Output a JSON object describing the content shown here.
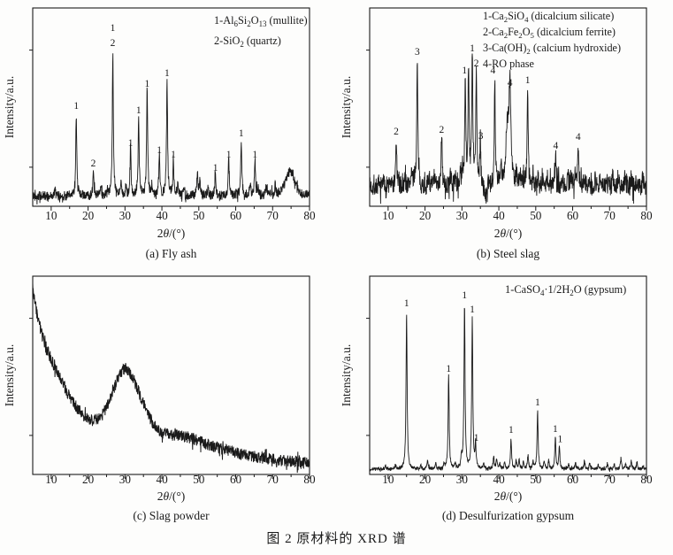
{
  "figure_caption": "图 2  原材料的 XRD 谱",
  "line_color": "#1a1a1a",
  "chart_data": [
    {
      "id": "a",
      "type": "line",
      "variant": "xrd-pattern",
      "panel_label": "(a) Fly ash",
      "xlabel": "2*θ*/(°)",
      "ylabel": "Intensity/a.u.",
      "xlim": [
        5,
        80
      ],
      "xticks": [
        10,
        20,
        30,
        40,
        50,
        60,
        70,
        80
      ],
      "minor_xticks": [
        15,
        25,
        35,
        45,
        55,
        65,
        75
      ],
      "y_units": "arbitrary (no tick labels)",
      "legend": [
        "1-Al_6_Si_2_O_13_ (mullite)",
        "2-SiO_2_ (quartz)"
      ],
      "noise": {
        "base": 0.055,
        "amp": 0.026,
        "seed": 42
      },
      "peaks": [
        [
          16.8,
          0.445
        ],
        [
          21.4,
          0.12
        ],
        [
          26.7,
          0.77
        ],
        [
          31.5,
          0.255
        ],
        [
          33.7,
          0.43
        ],
        [
          36.0,
          0.575
        ],
        [
          39.3,
          0.216
        ],
        [
          41.4,
          0.63
        ],
        [
          43.1,
          0.193
        ],
        [
          54.5,
          0.12
        ],
        [
          58.1,
          0.193
        ],
        [
          61.5,
          0.307
        ],
        [
          65.2,
          0.193
        ]
      ],
      "minor_peaks": [
        [
          11.0,
          0.03
        ],
        [
          23.5,
          0.04
        ],
        [
          28.9,
          0.09
        ],
        [
          30.2,
          0.05
        ],
        [
          37.3,
          0.05
        ],
        [
          44.3,
          0.06
        ],
        [
          46.0,
          0.05
        ],
        [
          49.6,
          0.12
        ],
        [
          50.3,
          0.09
        ],
        [
          52.5,
          0.05
        ],
        [
          63.9,
          0.06
        ],
        [
          66.0,
          0.04
        ],
        [
          68.2,
          0.05
        ],
        [
          70.7,
          0.05
        ],
        [
          74.3,
          0.1,
          1.2
        ],
        [
          75.4,
          0.07,
          0.8
        ]
      ],
      "peak_labels": [
        [
          16.8,
          "1",
          0.524
        ],
        [
          21.4,
          "2",
          0.214
        ],
        [
          26.7,
          "1",
          0.943
        ],
        [
          26.7,
          "2",
          0.862
        ],
        [
          31.5,
          "1",
          0.324
        ],
        [
          33.7,
          "1",
          0.5
        ],
        [
          36.0,
          "1",
          0.643
        ],
        [
          39.3,
          "1",
          0.286
        ],
        [
          41.4,
          "1",
          0.7
        ],
        [
          43.1,
          "1",
          0.262
        ],
        [
          54.5,
          "1",
          0.19
        ],
        [
          58.1,
          "1",
          0.262
        ],
        [
          61.5,
          "1",
          0.376
        ],
        [
          65.2,
          "1",
          0.262
        ]
      ]
    },
    {
      "id": "b",
      "type": "line",
      "variant": "xrd-pattern",
      "panel_label": "(b) Steel slag",
      "xlabel": "2*θ*/(°)",
      "ylabel": "Intensity/a.u.",
      "xlim": [
        5,
        80
      ],
      "xticks": [
        10,
        20,
        30,
        40,
        50,
        60,
        70,
        80
      ],
      "minor_xticks": [
        15,
        25,
        35,
        45,
        55,
        65,
        75
      ],
      "y_units": "arbitrary (no tick labels)",
      "legend": [
        "1-Ca_2_SiO_4_ (dicalcium silicate)",
        "2-Ca_2_Fe_2_O_5_ (dicalcium ferrite)",
        "3-Ca(OH)_2_ (calcium hydroxide)",
        "4-RO phase"
      ],
      "noise": {
        "base": 0.105,
        "amp": 0.052,
        "seed": 7
      },
      "peaks": [
        [
          12.2,
          0.24
        ],
        [
          17.9,
          0.67
        ],
        [
          24.5,
          0.27
        ],
        [
          30.9,
          0.575
        ],
        [
          31.8,
          0.65
        ],
        [
          32.8,
          0.7
        ],
        [
          33.9,
          0.6
        ],
        [
          35.0,
          0.24
        ],
        [
          38.9,
          0.56
        ],
        [
          42.3,
          0.3,
          0.5
        ],
        [
          43.0,
          0.5,
          0.3
        ],
        [
          47.8,
          0.53
        ],
        [
          55.4,
          0.185
        ],
        [
          61.5,
          0.23
        ]
      ],
      "minor_peaks": [
        [
          8.6,
          0.05
        ],
        [
          10.5,
          0.04
        ],
        [
          14.6,
          0.05
        ],
        [
          16.3,
          0.09
        ],
        [
          17.2,
          0.05
        ],
        [
          21.1,
          0.06
        ],
        [
          22.4,
          0.05
        ],
        [
          23.3,
          0.04
        ],
        [
          26.8,
          0.05
        ],
        [
          28.1,
          0.06
        ],
        [
          29.6,
          0.07
        ],
        [
          30.2,
          0.08
        ],
        [
          36.6,
          -0.07,
          0.6
        ],
        [
          37.2,
          0.05
        ],
        [
          40.6,
          0.08
        ],
        [
          44.8,
          0.07
        ],
        [
          45.8,
          0.05
        ],
        [
          46.8,
          0.06
        ],
        [
          49.3,
          0.06
        ],
        [
          50.6,
          0.06
        ],
        [
          51.8,
          0.05
        ],
        [
          53.2,
          0.05
        ],
        [
          57.2,
          0.06
        ],
        [
          58.7,
          0.08
        ],
        [
          59.6,
          0.06
        ],
        [
          60.6,
          0.06
        ],
        [
          63.2,
          0.05
        ],
        [
          64.4,
          0.05
        ],
        [
          66.1,
          0.04
        ],
        [
          67.4,
          0.05
        ],
        [
          69.2,
          0.04
        ],
        [
          70.9,
          0.06
        ],
        [
          72.3,
          0.05
        ],
        [
          74.2,
          0.05
        ],
        [
          75.8,
          0.05
        ],
        [
          77.4,
          0.04
        ],
        [
          79.0,
          0.05
        ]
      ],
      "peak_labels": [
        [
          12.2,
          "2",
          0.386
        ],
        [
          17.9,
          "3",
          0.814
        ],
        [
          24.5,
          "2",
          0.395
        ],
        [
          30.7,
          "1",
          0.714
        ],
        [
          32.8,
          "1",
          0.833
        ],
        [
          33.9,
          "2",
          0.752
        ],
        [
          35.1,
          "3",
          0.362
        ],
        [
          38.4,
          "4",
          0.714
        ],
        [
          43.0,
          "4",
          0.648
        ],
        [
          47.8,
          "1",
          0.662
        ],
        [
          55.4,
          "4",
          0.31
        ],
        [
          61.5,
          "4",
          0.357
        ]
      ]
    },
    {
      "id": "c",
      "type": "line",
      "variant": "xrd-amorphous",
      "panel_label": "(c) Slag powder",
      "xlabel": "2*θ*/(°)",
      "ylabel": "Intensity/a.u.",
      "xlim": [
        5,
        80
      ],
      "xticks": [
        10,
        20,
        30,
        40,
        50,
        60,
        70,
        80
      ],
      "minor_xticks": [
        15,
        25,
        35,
        45,
        55,
        65,
        75
      ],
      "y_units": "arbitrary (no tick labels)",
      "legend": [],
      "noise": {
        "base": 0,
        "amp": 0.032,
        "seed": 3
      },
      "backbone": [
        [
          5,
          1.0
        ],
        [
          6,
          0.88
        ],
        [
          7,
          0.79
        ],
        [
          8,
          0.715
        ],
        [
          9,
          0.665
        ],
        [
          10,
          0.62
        ],
        [
          11,
          0.575
        ],
        [
          12,
          0.535
        ],
        [
          13,
          0.495
        ],
        [
          14,
          0.455
        ],
        [
          15,
          0.42
        ],
        [
          16,
          0.39
        ],
        [
          17,
          0.36
        ],
        [
          18,
          0.335
        ],
        [
          19,
          0.315
        ],
        [
          20,
          0.3
        ],
        [
          21,
          0.29
        ],
        [
          22,
          0.29
        ],
        [
          23,
          0.3
        ],
        [
          24,
          0.325
        ],
        [
          25,
          0.365
        ],
        [
          26,
          0.415
        ],
        [
          27,
          0.465
        ],
        [
          28,
          0.515
        ],
        [
          29,
          0.55
        ],
        [
          30,
          0.57
        ],
        [
          31,
          0.56
        ],
        [
          32,
          0.525
        ],
        [
          33,
          0.48
        ],
        [
          34,
          0.43
        ],
        [
          35,
          0.38
        ],
        [
          36,
          0.335
        ],
        [
          37,
          0.295
        ],
        [
          38,
          0.265
        ],
        [
          39,
          0.24
        ],
        [
          40,
          0.225
        ],
        [
          42,
          0.215
        ],
        [
          44,
          0.21
        ],
        [
          46,
          0.205
        ],
        [
          48,
          0.195
        ],
        [
          50,
          0.18
        ],
        [
          52,
          0.165
        ],
        [
          54,
          0.152
        ],
        [
          56,
          0.14
        ],
        [
          58,
          0.127
        ],
        [
          60,
          0.115
        ],
        [
          62,
          0.107
        ],
        [
          64,
          0.1
        ],
        [
          66,
          0.092
        ],
        [
          68,
          0.086
        ],
        [
          70,
          0.08
        ],
        [
          72,
          0.076
        ],
        [
          74,
          0.072
        ],
        [
          76,
          0.069
        ],
        [
          78,
          0.067
        ],
        [
          80,
          0.065
        ]
      ],
      "peaks": [],
      "minor_peaks": [],
      "peak_labels": []
    },
    {
      "id": "d",
      "type": "line",
      "variant": "xrd-pattern",
      "panel_label": "(d) Desulfurization gypsum",
      "xlabel": "2*θ*/(°)",
      "ylabel": "Intensity/a.u.",
      "xlim": [
        5,
        80
      ],
      "xticks": [
        10,
        20,
        30,
        40,
        50,
        60,
        70,
        80
      ],
      "minor_xticks": [
        15,
        25,
        35,
        45,
        55,
        65,
        75
      ],
      "y_units": "arbitrary (no tick labels)",
      "legend": [
        "1-CaSO_4_·1/2H_2_O (gypsum)"
      ],
      "noise": {
        "base": 0.028,
        "amp": 0.009,
        "seed": 99
      },
      "peaks": [
        [
          15.0,
          0.848
        ],
        [
          26.4,
          0.5
        ],
        [
          30.7,
          0.89
        ],
        [
          32.8,
          0.82
        ],
        [
          33.7,
          0.12
        ],
        [
          43.3,
          0.167
        ],
        [
          50.5,
          0.31
        ],
        [
          55.3,
          0.167
        ],
        [
          56.4,
          0.12
        ]
      ],
      "minor_peaks": [
        [
          9.3,
          0.015
        ],
        [
          12.1,
          0.02
        ],
        [
          18.9,
          0.02
        ],
        [
          20.7,
          0.045
        ],
        [
          22.9,
          0.03
        ],
        [
          25.2,
          0.025
        ],
        [
          28.2,
          0.03
        ],
        [
          29.9,
          0.06
        ],
        [
          35.9,
          0.03
        ],
        [
          38.6,
          0.065
        ],
        [
          39.4,
          0.055
        ],
        [
          40.3,
          0.035
        ],
        [
          41.6,
          0.04
        ],
        [
          44.7,
          0.04
        ],
        [
          45.5,
          0.05
        ],
        [
          46.7,
          0.04
        ],
        [
          47.9,
          0.075
        ],
        [
          49.3,
          0.04
        ],
        [
          52.3,
          0.04
        ],
        [
          53.5,
          0.045
        ],
        [
          58.9,
          0.03
        ],
        [
          60.8,
          0.03
        ],
        [
          63.2,
          0.05
        ],
        [
          64.6,
          0.03
        ],
        [
          66.9,
          0.02
        ],
        [
          69.4,
          0.03
        ],
        [
          71.3,
          0.03
        ],
        [
          73.1,
          0.06
        ],
        [
          74.4,
          0.03
        ],
        [
          75.9,
          0.045
        ],
        [
          77.4,
          0.04
        ],
        [
          79.1,
          0.02
        ]
      ],
      "peak_labels": [
        [
          15.0,
          "1",
          0.905
        ],
        [
          26.4,
          "1",
          0.552
        ],
        [
          30.7,
          "1",
          0.948
        ],
        [
          32.8,
          "1",
          0.871
        ],
        [
          33.9,
          "1",
          0.181
        ],
        [
          43.3,
          "1",
          0.224
        ],
        [
          50.5,
          "1",
          0.371
        ],
        [
          55.3,
          "1",
          0.229
        ],
        [
          56.6,
          "1",
          0.175
        ]
      ]
    }
  ]
}
